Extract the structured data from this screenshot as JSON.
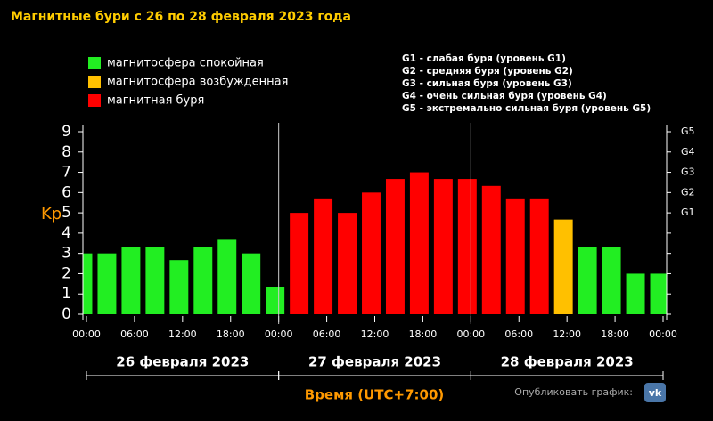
{
  "chart_data": {
    "type": "bar",
    "title": "Магнитные бури с 26 по 28 февраля 2023 года",
    "ylabel": "Kp",
    "xlabel": "Время (UTC+7:00)",
    "publish_text": "Опубликовать график:",
    "legend": [
      {
        "name": "магнитосфера спокойная",
        "color": "#22ee22"
      },
      {
        "name": "магнитосфера возбужденная",
        "color": "#ffc000"
      },
      {
        "name": "магнитная буря",
        "color": "#ff0000"
      }
    ],
    "storm_levels": [
      "G1 - слабая буря (уровень G1)",
      "G2 - средняя буря (уровень G2)",
      "G3 - сильная буря (уровень G3)",
      "G4 - очень сильная буря (уровень G4)",
      "G5 - экстремально сильная буря (уровень G5)"
    ],
    "x": [
      -3,
      0,
      3,
      6,
      9,
      12,
      15,
      18,
      21,
      24,
      27,
      30,
      33,
      36,
      39,
      42,
      45,
      48,
      51,
      54,
      57,
      60,
      63,
      66,
      69
    ],
    "values": [
      3,
      3,
      3.33,
      3.33,
      2.67,
      3.33,
      3.67,
      3,
      1.33,
      5,
      5.67,
      5,
      6,
      6.67,
      7,
      6.67,
      6.67,
      6.33,
      5.67,
      5.67,
      4.67,
      3.33,
      3.33,
      2,
      2
    ],
    "colors": [
      "#22ee22",
      "#22ee22",
      "#22ee22",
      "#22ee22",
      "#22ee22",
      "#22ee22",
      "#22ee22",
      "#22ee22",
      "#22ee22",
      "#ff0000",
      "#ff0000",
      "#ff0000",
      "#ff0000",
      "#ff0000",
      "#ff0000",
      "#ff0000",
      "#ff0000",
      "#ff0000",
      "#ff0000",
      "#ff0000",
      "#ffc000",
      "#22ee22",
      "#22ee22",
      "#22ee22",
      "#22ee22"
    ],
    "xlim": [
      0,
      72
    ],
    "xticks": [
      {
        "value": 0,
        "label": "00:00"
      },
      {
        "value": 6,
        "label": "06:00"
      },
      {
        "value": 12,
        "label": "12:00"
      },
      {
        "value": 18,
        "label": "18:00"
      },
      {
        "value": 24,
        "label": "00:00"
      },
      {
        "value": 30,
        "label": "06:00"
      },
      {
        "value": 36,
        "label": "12:00"
      },
      {
        "value": 42,
        "label": "18:00"
      },
      {
        "value": 48,
        "label": "00:00"
      },
      {
        "value": 54,
        "label": "06:00"
      },
      {
        "value": 60,
        "label": "12:00"
      },
      {
        "value": 66,
        "label": "18:00"
      },
      {
        "value": 72,
        "label": "00:00"
      }
    ],
    "ylim": [
      0,
      9
    ],
    "yticks": [
      0,
      1,
      2,
      3,
      4,
      5,
      6,
      7,
      8,
      9
    ],
    "y2lim": [
      0,
      9
    ],
    "y2ticks": [
      {
        "value": 5,
        "label": "G1"
      },
      {
        "value": 6,
        "label": "G2"
      },
      {
        "value": 7,
        "label": "G3"
      },
      {
        "value": 8,
        "label": "G4"
      },
      {
        "value": 9,
        "label": "G5"
      }
    ],
    "days": [
      {
        "label": "26 февраля 2023",
        "start": 0,
        "end": 24
      },
      {
        "label": "27 февраля 2023",
        "start": 24,
        "end": 48
      },
      {
        "label": "28 февраля 2023",
        "start": 48,
        "end": 72
      }
    ]
  }
}
